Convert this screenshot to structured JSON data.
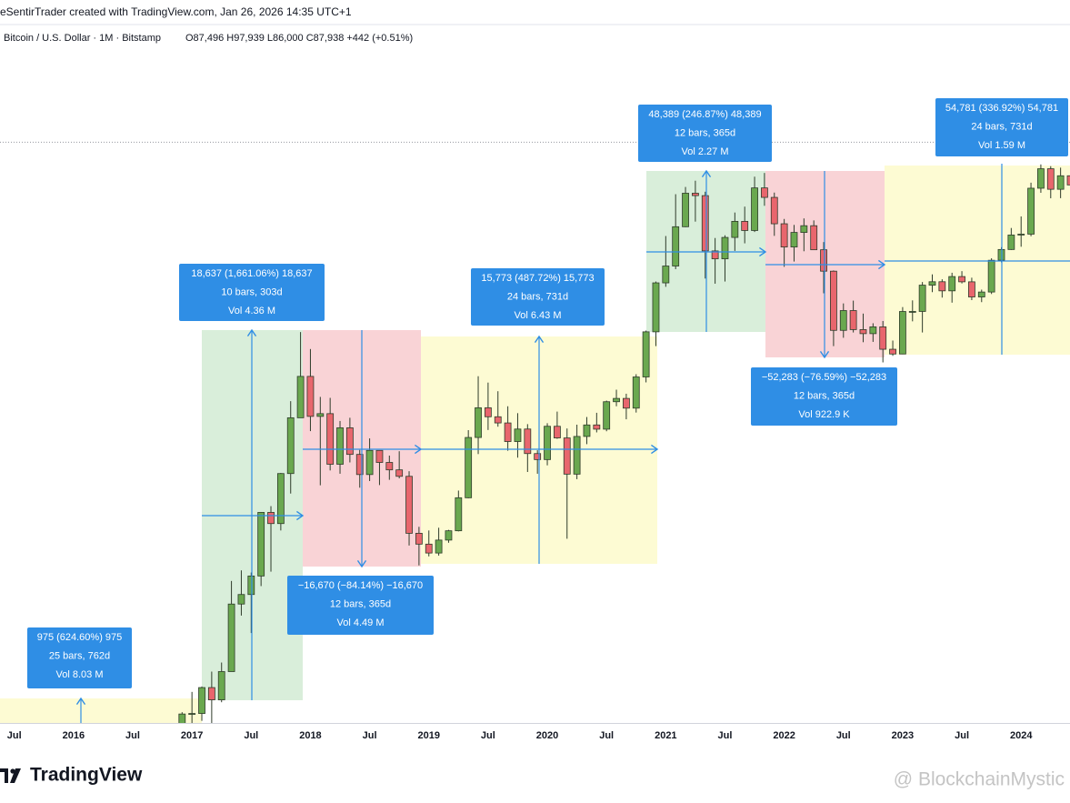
{
  "header": {
    "credit": "eSentirTrader created with TradingView.com, Jan 26, 2026 14:35 UTC+1"
  },
  "footer": {
    "brand": "TradingView",
    "watermark": "@ BlockchainMystic"
  },
  "chart_data": {
    "type": "candlestick",
    "title": "Bitcoin / U.S. Dollar · 1M · Bitstamp",
    "subtitle": "O87,496 H97,939 L86,000 C87,938 +442 (+0.51%)",
    "last_price": 87938,
    "log_scale": true,
    "up_color": "#6aa84f",
    "down_color": "#e8666d",
    "border_color": "#2e3b2a",
    "xlim": [
      "2015-05",
      "2024-06"
    ],
    "ylim": [
      900,
      182000
    ],
    "xticks": [
      {
        "value": "2015-07",
        "label": "Jul"
      },
      {
        "value": "2016-01",
        "label": "2016"
      },
      {
        "value": "2016-07",
        "label": "Jul"
      },
      {
        "value": "2017-01",
        "label": "2017"
      },
      {
        "value": "2017-07",
        "label": "Jul"
      },
      {
        "value": "2018-01",
        "label": "2018"
      },
      {
        "value": "2018-07",
        "label": "Jul"
      },
      {
        "value": "2019-01",
        "label": "2019"
      },
      {
        "value": "2019-07",
        "label": "Jul"
      },
      {
        "value": "2020-01",
        "label": "2020"
      },
      {
        "value": "2020-07",
        "label": "Jul"
      },
      {
        "value": "2021-01",
        "label": "2021"
      },
      {
        "value": "2021-07",
        "label": "Jul"
      },
      {
        "value": "2022-01",
        "label": "2022"
      },
      {
        "value": "2022-07",
        "label": "Jul"
      },
      {
        "value": "2023-01",
        "label": "2023"
      },
      {
        "value": "2023-07",
        "label": "Jul"
      },
      {
        "value": "2024-01",
        "label": "2024"
      }
    ],
    "x": [
      "2016-12",
      "2017-01",
      "2017-02",
      "2017-03",
      "2017-04",
      "2017-05",
      "2017-06",
      "2017-07",
      "2017-08",
      "2017-09",
      "2017-10",
      "2017-11",
      "2017-12",
      "2018-01",
      "2018-02",
      "2018-03",
      "2018-04",
      "2018-05",
      "2018-06",
      "2018-07",
      "2018-08",
      "2018-09",
      "2018-10",
      "2018-11",
      "2018-12",
      "2019-01",
      "2019-02",
      "2019-03",
      "2019-04",
      "2019-05",
      "2019-06",
      "2019-07",
      "2019-08",
      "2019-09",
      "2019-10",
      "2019-11",
      "2019-12",
      "2020-01",
      "2020-02",
      "2020-03",
      "2020-04",
      "2020-05",
      "2020-06",
      "2020-07",
      "2020-08",
      "2020-09",
      "2020-10",
      "2020-11",
      "2020-12",
      "2021-01",
      "2021-02",
      "2021-03",
      "2021-04",
      "2021-05",
      "2021-06",
      "2021-07",
      "2021-08",
      "2021-09",
      "2021-10",
      "2021-11",
      "2021-12",
      "2022-01",
      "2022-02",
      "2022-03",
      "2022-04",
      "2022-05",
      "2022-06",
      "2022-07",
      "2022-08",
      "2022-09",
      "2022-10",
      "2022-11",
      "2022-12",
      "2023-01",
      "2023-02",
      "2023-03",
      "2023-04",
      "2023-05",
      "2023-06",
      "2023-07",
      "2023-08",
      "2023-09",
      "2023-10",
      "2023-11",
      "2023-12",
      "2024-01",
      "2024-02",
      "2024-03",
      "2024-04",
      "2024-05",
      "2024-06"
    ],
    "open": [
      745,
      966,
      970,
      1190,
      1080,
      1350,
      2300,
      2480,
      2870,
      4740,
      4340,
      6440,
      10000,
      13860,
      10110,
      10330,
      6930,
      9240,
      7490,
      6390,
      7730,
      7030,
      6630,
      6300,
      4020,
      3690,
      3440,
      3810,
      4100,
      5320,
      8560,
      10820,
      10080,
      9600,
      8290,
      9150,
      7540,
      7190,
      9350,
      8530,
      6410,
      8630,
      9450,
      9140,
      11350,
      11650,
      10790,
      13800,
      19700,
      28990,
      33110,
      45140,
      58800,
      57700,
      37300,
      35040,
      41490,
      47100,
      43820,
      61320,
      56900,
      46210,
      38470,
      43160,
      45510,
      37640,
      31790,
      19930,
      23300,
      20050,
      19420,
      20490,
      17170,
      16540,
      23130,
      23140,
      28470,
      29250,
      27220,
      30470,
      29230,
      25940,
      26970,
      34650,
      37720,
      42280,
      42580,
      61170,
      71330,
      60660,
      67490
    ],
    "high": [
      980,
      1150,
      1200,
      1350,
      1450,
      2760,
      3000,
      2950,
      4750,
      4980,
      6470,
      11400,
      19666,
      17200,
      11790,
      11700,
      9750,
      10000,
      7760,
      8500,
      7740,
      7420,
      7680,
      6560,
      4230,
      4110,
      4200,
      4130,
      5630,
      9070,
      13880,
      13200,
      12330,
      10950,
      10370,
      9510,
      7740,
      9580,
      10500,
      9190,
      9470,
      10060,
      10400,
      11450,
      12480,
      12090,
      14100,
      19900,
      29300,
      41950,
      58350,
      61780,
      64900,
      59500,
      41300,
      42200,
      50500,
      52900,
      67000,
      69000,
      59100,
      48000,
      45800,
      48200,
      47450,
      40000,
      31980,
      24650,
      25200,
      22750,
      21080,
      21460,
      18390,
      23950,
      25250,
      29180,
      31000,
      29820,
      31400,
      31800,
      30200,
      27480,
      35200,
      38420,
      44700,
      48970,
      63900,
      73800,
      72800,
      71950,
      71980
    ],
    "low": [
      740,
      750,
      915,
      890,
      1060,
      1350,
      2100,
      1830,
      2650,
      2970,
      4110,
      5500,
      10000,
      9000,
      5870,
      6600,
      6430,
      7030,
      5760,
      6070,
      5880,
      6130,
      6200,
      3650,
      3120,
      3350,
      3370,
      3730,
      4080,
      5300,
      7510,
      9080,
      9320,
      7710,
      7300,
      6520,
      6430,
      6870,
      8470,
      3850,
      6160,
      8120,
      8910,
      8990,
      10950,
      9880,
      10420,
      13220,
      17600,
      28100,
      32300,
      45000,
      47000,
      30000,
      28800,
      29300,
      37300,
      39600,
      43300,
      53250,
      42000,
      32900,
      34300,
      37200,
      37600,
      26700,
      17600,
      18800,
      19600,
      18150,
      18200,
      15480,
      16300,
      16500,
      21400,
      19600,
      26940,
      25810,
      24800,
      28860,
      25300,
      24900,
      26550,
      34100,
      37600,
      38550,
      41880,
      59000,
      56500,
      56550,
      58400
    ],
    "close": [
      966,
      970,
      1190,
      1080,
      1350,
      2300,
      2480,
      2870,
      4740,
      4340,
      6440,
      10000,
      13860,
      10110,
      10330,
      6930,
      9240,
      7490,
      6390,
      7730,
      7030,
      6630,
      6300,
      4020,
      3690,
      3440,
      3810,
      4100,
      5320,
      8560,
      10820,
      10080,
      9600,
      8290,
      9150,
      7540,
      7190,
      9350,
      8530,
      6410,
      8630,
      9450,
      9140,
      11350,
      11650,
      10790,
      13800,
      19700,
      28990,
      33110,
      45140,
      58800,
      57700,
      37300,
      35040,
      41490,
      47100,
      43820,
      61320,
      56900,
      46210,
      38470,
      43160,
      45510,
      37640,
      31790,
      19930,
      23300,
      20050,
      19420,
      20490,
      17170,
      16540,
      23130,
      23140,
      28470,
      29250,
      27220,
      30470,
      29230,
      25940,
      26970,
      34650,
      37720,
      42280,
      42580,
      61170,
      71330,
      60660,
      67490,
      62770
    ],
    "measurements": [
      {
        "lines": [
          "975 (624.60%) 975",
          "25 bars, 762d",
          "Vol 8.03 M"
        ]
      },
      {
        "lines": [
          "18,637 (1,661.06%) 18,637",
          "10 bars, 303d",
          "Vol 4.36 M"
        ]
      },
      {
        "lines": [
          "−16,670 (−84.14%) −16,670",
          "12 bars, 365d",
          "Vol 4.49 M"
        ]
      },
      {
        "lines": [
          "15,773 (487.72%) 15,773",
          "24 bars, 731d",
          "Vol 6.43 M"
        ]
      },
      {
        "lines": [
          "48,389 (246.87%) 48,389",
          "12 bars, 365d",
          "Vol 2.27 M"
        ]
      },
      {
        "lines": [
          "−52,283 (−76.59%) −52,283",
          "12 bars, 365d",
          "Vol 922.9 K"
        ]
      },
      {
        "lines": [
          "54,781 (336.92%) 54,781",
          "24 bars, 731d",
          "Vol 1.59 M"
        ]
      }
    ]
  }
}
